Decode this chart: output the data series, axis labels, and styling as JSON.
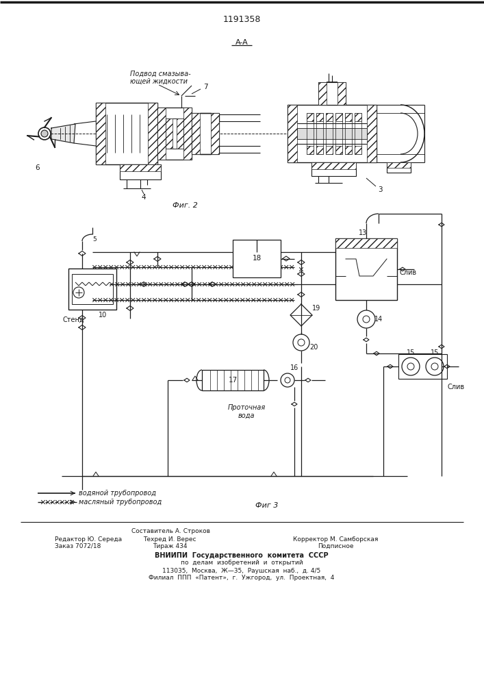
{
  "patent_number": "1191358",
  "background_color": "#ffffff",
  "line_color": "#1a1a1a",
  "fig_width": 7.07,
  "fig_height": 10.0,
  "dpi": 100,
  "top_label": "1191358",
  "section_label": "A-A",
  "fig2_label": "Фиг. 2",
  "fig3_label": "Фиг 3",
  "annotation_lubrication": "Подвод смазыва-\nющей жидкости",
  "annotation_stend": "Стенд",
  "annotation_water": "Проточная\nвода",
  "annotation_sliv": "Слив",
  "legend_water_text": "водяной трубопровод",
  "legend_oil_text": "масляный трубопровод",
  "footer_line0_center": "Составитель А. Строков",
  "footer_line1_left": "Редактор Ю. Середа",
  "footer_line1_center": "Техред И. Верес",
  "footer_line1_right": "Корректор М. Самборская",
  "footer_line2_left": "Заказ 7072/18",
  "footer_line2_center": "Тираж 434",
  "footer_line2_right": "Подписное",
  "footer_vniip1": "ВНИИПИ  Государственного  комитета  СССР",
  "footer_vniip2": "по  делам  изобретений  и  открытий",
  "footer_vniip3": "113035,  Москва,  Ж—35,  Раушская  наб.,  д. 4/5",
  "footer_vniip4": "Филиал  ППП  «Патент»,  г.  Ужгород,  ул.  Проектная,  4"
}
